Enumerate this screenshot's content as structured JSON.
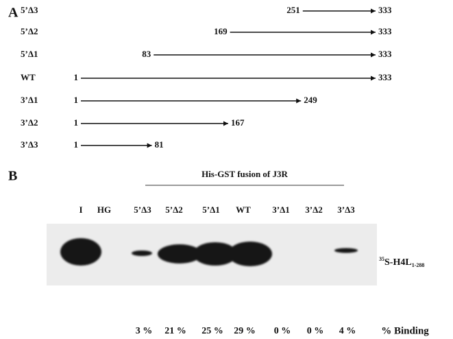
{
  "panel_a": {
    "letter": "A",
    "constructs": [
      {
        "label": "5’Δ3",
        "start": 251,
        "end": 333
      },
      {
        "label": "5’Δ2",
        "start": 169,
        "end": 333
      },
      {
        "label": "5’Δ1",
        "start": 83,
        "end": 333
      },
      {
        "label": "WT",
        "start": 1,
        "end": 333
      },
      {
        "label": "3’Δ1",
        "start": 1,
        "end": 249
      },
      {
        "label": "3’Δ2",
        "start": 1,
        "end": 167
      },
      {
        "label": "3’Δ3",
        "start": 1,
        "end": 81
      }
    ]
  },
  "panel_b": {
    "letter": "B",
    "header": "His-GST fusion of J3R",
    "lanes": [
      "I",
      "HG",
      "5’Δ3",
      "5’Δ2",
      "5’Δ1",
      "WT",
      "3’Δ1",
      "3’Δ2",
      "3’Δ3"
    ],
    "probe": {
      "sup": "35",
      "main": "S-H4L",
      "sub": "1-288"
    },
    "binding": [
      "3 %",
      "21 %",
      "25 %",
      "29 %",
      "0 %",
      "0 %",
      "4 %"
    ],
    "binding_label": "% Binding"
  }
}
